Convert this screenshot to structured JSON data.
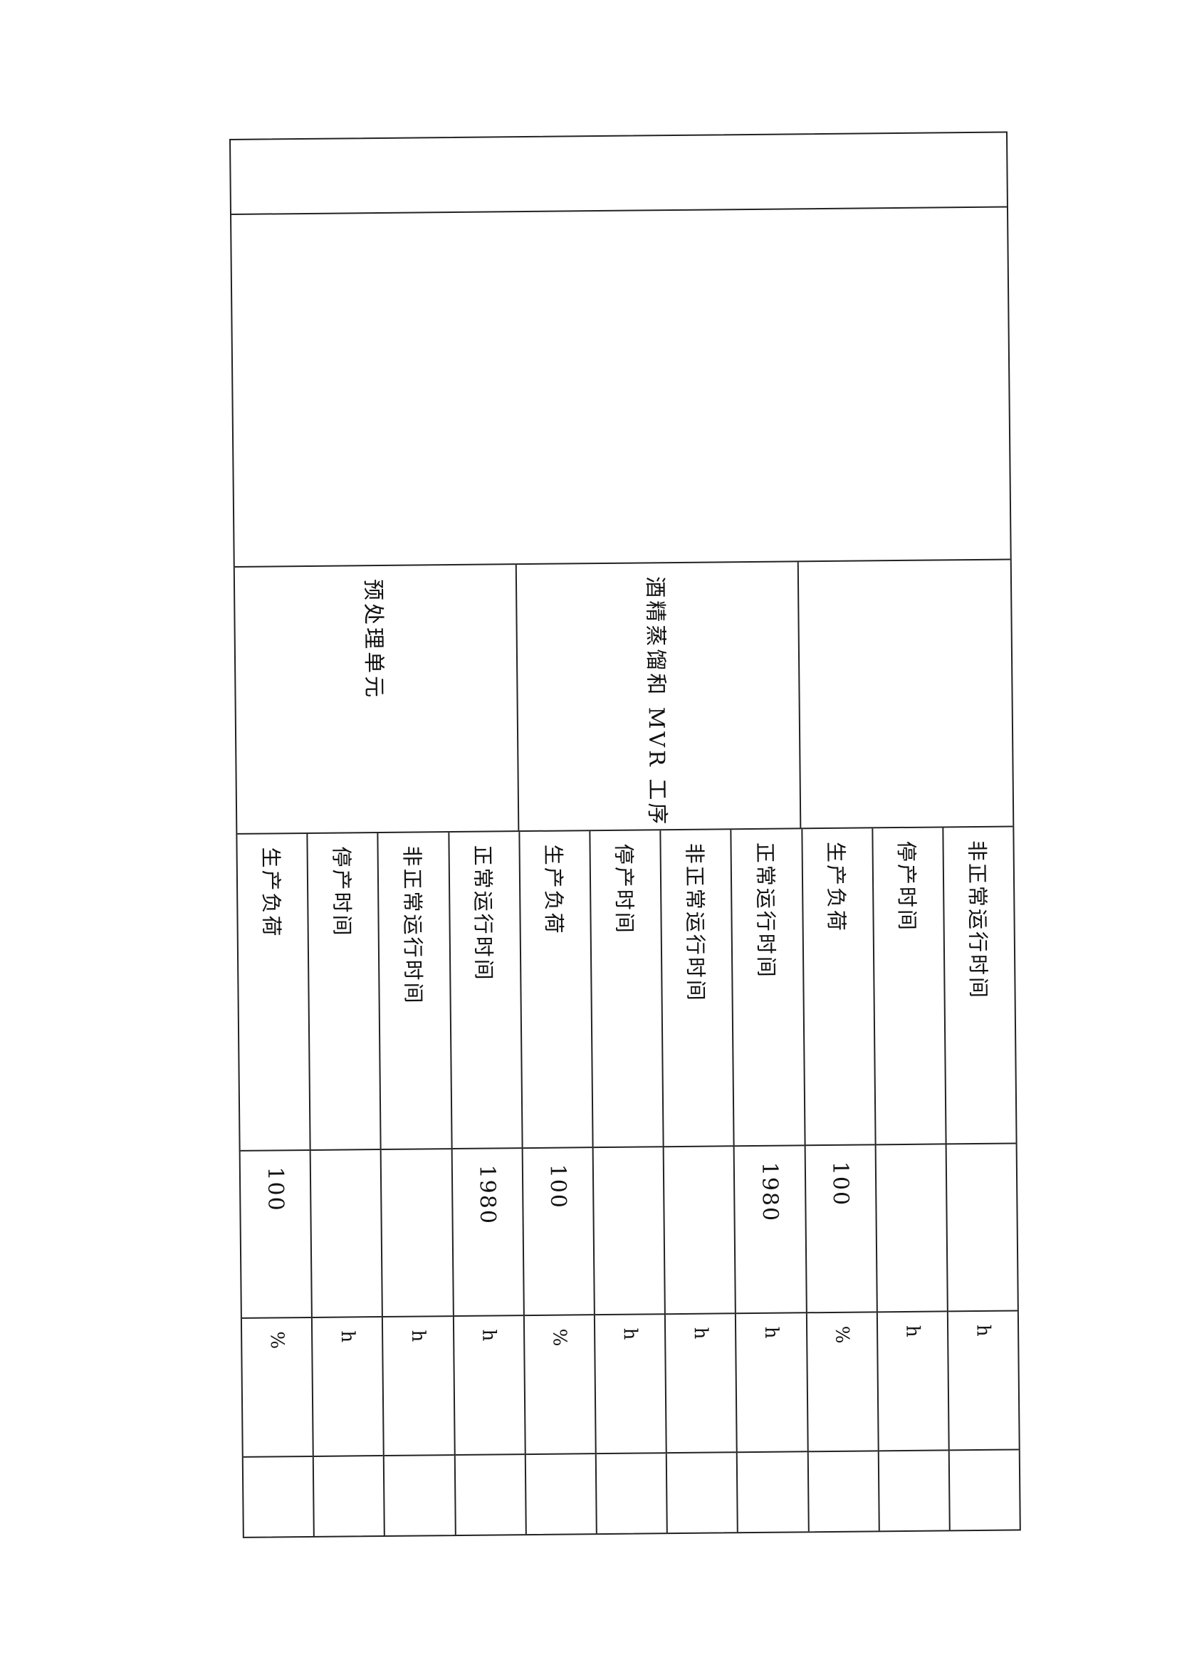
{
  "groups": [
    {
      "label": "预处理单元",
      "span": 4
    },
    {
      "label": "酒精蒸馏和 MVR 工序",
      "span": 4
    },
    {
      "label": "",
      "span": 3
    }
  ],
  "columns": [
    {
      "label": "生产负荷",
      "value": "100",
      "unit": "%"
    },
    {
      "label": "停产时间",
      "value": "",
      "unit": "h"
    },
    {
      "label": "非正常运行时间",
      "value": "",
      "unit": "h"
    },
    {
      "label": "正常运行时间",
      "value": "1980",
      "unit": "h"
    },
    {
      "label": "生产负荷",
      "value": "100",
      "unit": "%"
    },
    {
      "label": "停产时间",
      "value": "",
      "unit": "h"
    },
    {
      "label": "非正常运行时间",
      "value": "",
      "unit": "h"
    },
    {
      "label": "正常运行时间",
      "value": "1980",
      "unit": "h"
    },
    {
      "label": "生产负荷",
      "value": "100",
      "unit": "%"
    },
    {
      "label": "停产时间",
      "value": "",
      "unit": "h"
    },
    {
      "label": "非正常运行时间",
      "value": "",
      "unit": "h"
    }
  ]
}
